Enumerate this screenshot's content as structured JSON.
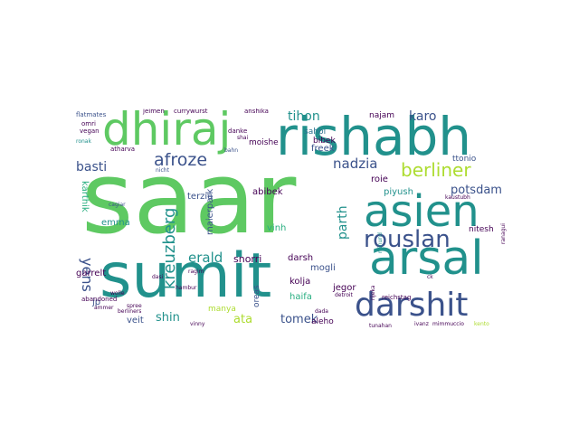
{
  "words": {
    "saar": "saar",
    "sumit": "sumit",
    "rishabh": "rishabh",
    "dhiraj": "dhiraj",
    "arsal": "arsal",
    "asien": "asien",
    "darshit": "darshit",
    "rouslan": "rouslan",
    "berliner": "berliner",
    "afroze": "afroze",
    "kreuzberg": "kreuzberg",
    "potsdam": "potsdam",
    "basti": "basti",
    "nadzia": "nadzia",
    "erald": "erald",
    "yens": "yens",
    "tihon": "tihon",
    "karo": "karo",
    "parth": "parth",
    "tomek": "tomek",
    "shin": "shin",
    "ata": "ata",
    "snorri": "snorri",
    "piyush": "piyush",
    "abibek": "abibek",
    "terzia": "terzia",
    "jegor": "jegor",
    "haifa": "haifa",
    "kolja": "kolja",
    "mogli": "mogli",
    "darsh": "darsh",
    "veit": "veit",
    "garrelt": "garrelt",
    "emma": "emma",
    "jp": "jp",
    "karthik": "karthik",
    "maierpark": "maierpark",
    "freek": "freek",
    "sahbi": "sahbi",
    "moishe": "moishe",
    "roie": "roie",
    "najam": "najam",
    "ttonio": "ttonio",
    "nitesh": "nitesh",
    "bibek": "bibek",
    "aleho": "aleho",
    "oreas": "oreas",
    "vinh": "vinh",
    "manya": "manya",
    "flatmates": "flatmates",
    "jeimen": "jeimen",
    "currywurst": "currywurst",
    "anshika": "anshika",
    "omri": "omri",
    "vegan": "vegan",
    "ronak": "ronak",
    "atharva": "atharva",
    "danke": "danke",
    "shai": "shai",
    "bahn": "bahn",
    "nicht": "nicht",
    "cagiar": "cagiar",
    "spree": "spree",
    "ragim": "ragim",
    "abandoned": "abandoned",
    "ammer": "ammer",
    "berliners": "berliners",
    "wolle": "wolle",
    "dasi": "dasi",
    "hambur": "hambur",
    "vinny": "vinny",
    "tunahan": "tunahan",
    "ivanz": "ivanz",
    "mimmuccio": "mimmuccio",
    "kento": "kento",
    "dada": "dada",
    "detroit": "detroit",
    "rijeka": "rijeka",
    "reichstag": "reichstag",
    "kaustubh": "kaustubh",
    "ranagui": "ranagui",
    "reinund": "reinund",
    "ck": "ck"
  }
}
